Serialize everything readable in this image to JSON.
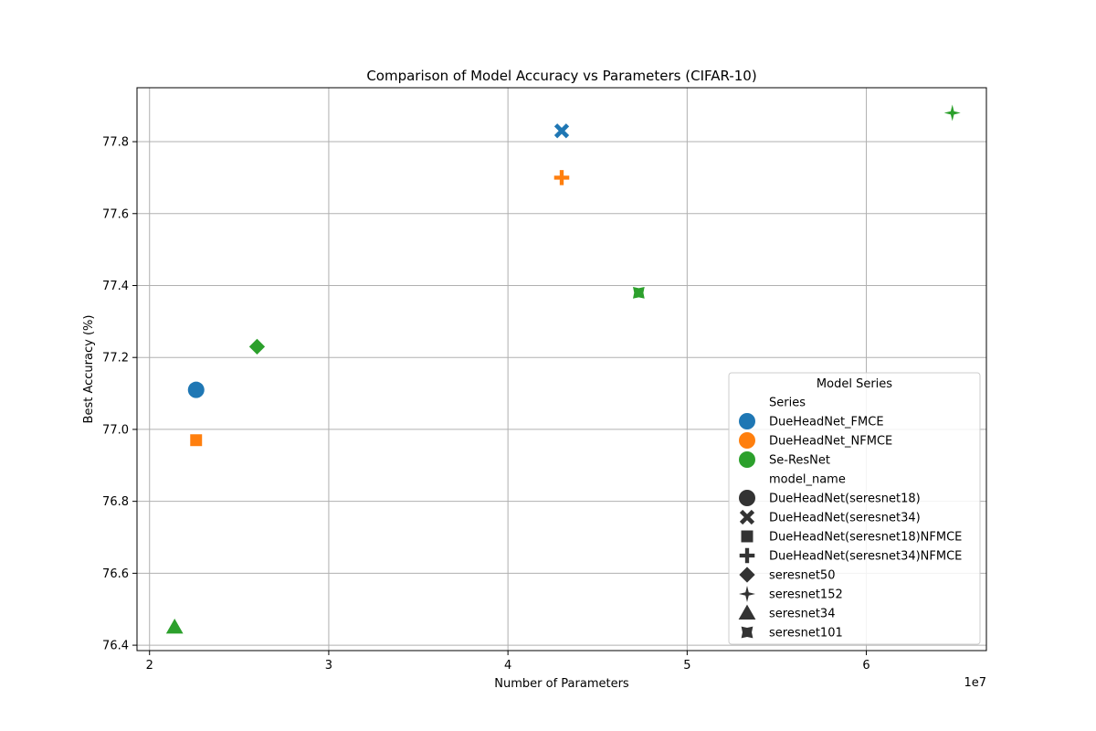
{
  "chart_data": {
    "type": "scatter",
    "title": "Comparison of Model Accuracy vs Parameters (CIFAR-10)",
    "xlabel": "Number of Parameters",
    "ylabel": "Best Accuracy (%)",
    "x_offset_label": "1e7",
    "xlim": [
      1.93,
      6.67
    ],
    "ylim": [
      76.385,
      77.95
    ],
    "x_ticks": [
      2,
      3,
      4,
      5,
      6
    ],
    "y_ticks": [
      76.4,
      76.6,
      76.8,
      77.0,
      77.2,
      77.4,
      77.6,
      77.8
    ],
    "x_tick_labels": [
      "2",
      "3",
      "4",
      "5",
      "6"
    ],
    "y_tick_labels": [
      "76.4",
      "76.6",
      "76.8",
      "77.0",
      "77.2",
      "77.4",
      "77.6",
      "77.8"
    ],
    "grid": true,
    "colors": {
      "DueHeadNet_FMCE": "#1f77b4",
      "DueHeadNet_NFMCE": "#ff7f0e",
      "Se-ResNet": "#2ca02c",
      "legend_marker": "#333333"
    },
    "points": [
      {
        "x": 2.26,
        "y": 77.11,
        "series": "DueHeadNet_FMCE",
        "model_name": "DueHeadNet(seresnet18)",
        "marker": "circle"
      },
      {
        "x": 4.3,
        "y": 77.83,
        "series": "DueHeadNet_FMCE",
        "model_name": "DueHeadNet(seresnet34)",
        "marker": "x"
      },
      {
        "x": 2.26,
        "y": 76.97,
        "series": "DueHeadNet_NFMCE",
        "model_name": "DueHeadNet(seresnet18)NFMCE",
        "marker": "square"
      },
      {
        "x": 4.3,
        "y": 77.7,
        "series": "DueHeadNet_NFMCE",
        "model_name": "DueHeadNet(seresnet34)NFMCE",
        "marker": "plus"
      },
      {
        "x": 2.6,
        "y": 77.23,
        "series": "Se-ResNet",
        "model_name": "seresnet50",
        "marker": "diamond"
      },
      {
        "x": 6.48,
        "y": 77.88,
        "series": "Se-ResNet",
        "model_name": "seresnet152",
        "marker": "star4"
      },
      {
        "x": 2.14,
        "y": 76.45,
        "series": "Se-ResNet",
        "model_name": "seresnet34",
        "marker": "triangle"
      },
      {
        "x": 4.73,
        "y": 77.38,
        "series": "Se-ResNet",
        "model_name": "seresnet101",
        "marker": "pinwheel"
      }
    ],
    "legend": {
      "title": "Model Series",
      "placement": "lower-right",
      "entries": [
        {
          "label": "Series",
          "marker": "none",
          "color": ""
        },
        {
          "label": "DueHeadNet_FMCE",
          "marker": "circle",
          "color": "#1f77b4"
        },
        {
          "label": "DueHeadNet_NFMCE",
          "marker": "circle",
          "color": "#ff7f0e"
        },
        {
          "label": "Se-ResNet",
          "marker": "circle",
          "color": "#2ca02c"
        },
        {
          "label": "model_name",
          "marker": "none",
          "color": ""
        },
        {
          "label": "DueHeadNet(seresnet18)",
          "marker": "circle",
          "color": "#333333"
        },
        {
          "label": "DueHeadNet(seresnet34)",
          "marker": "x",
          "color": "#333333"
        },
        {
          "label": "DueHeadNet(seresnet18)NFMCE",
          "marker": "square",
          "color": "#333333"
        },
        {
          "label": "DueHeadNet(seresnet34)NFMCE",
          "marker": "plus",
          "color": "#333333"
        },
        {
          "label": "seresnet50",
          "marker": "diamond",
          "color": "#333333"
        },
        {
          "label": "seresnet152",
          "marker": "star4",
          "color": "#333333"
        },
        {
          "label": "seresnet34",
          "marker": "triangle",
          "color": "#333333"
        },
        {
          "label": "seresnet101",
          "marker": "pinwheel",
          "color": "#333333"
        }
      ]
    }
  }
}
